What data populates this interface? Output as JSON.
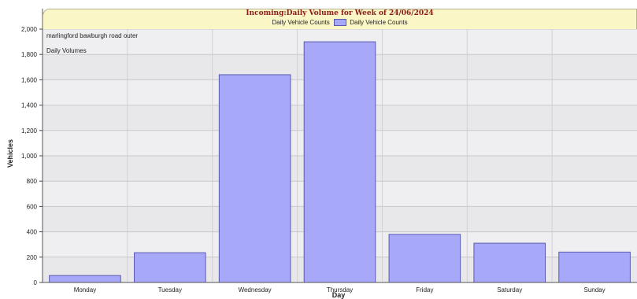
{
  "chart_data": {
    "type": "bar",
    "title": "Incoming:Daily Volume for Week of 24/06/2024",
    "legend": [
      "Daily Vehicle Counts",
      "Daily Vehicle Counts"
    ],
    "annotations": [
      "marlingford bawburgh road outer",
      "Daily Volumes"
    ],
    "xlabel": "Day",
    "ylabel": "Vehicles",
    "categories": [
      "Monday",
      "Tuesday",
      "Wednesday",
      "Thursday",
      "Friday",
      "Saturday",
      "Sunday"
    ],
    "series": [
      {
        "name": "Daily Vehicle Counts",
        "values": [
          55,
          235,
          1640,
          1900,
          380,
          310,
          240
        ]
      }
    ],
    "ylim": [
      0,
      2000
    ],
    "yticks": [
      "0",
      "200",
      "400",
      "600",
      "800",
      "1,000",
      "1,200",
      "1,400",
      "1,600",
      "1,800",
      "2,000"
    ],
    "grid": true,
    "colors": {
      "bar_fill": "#a8a8f8",
      "bar_stroke": "#5a5ab0",
      "plot_bg": "#e8e8ea",
      "title": "#8b1a1a",
      "header_bg": "#fbf6c6"
    }
  }
}
